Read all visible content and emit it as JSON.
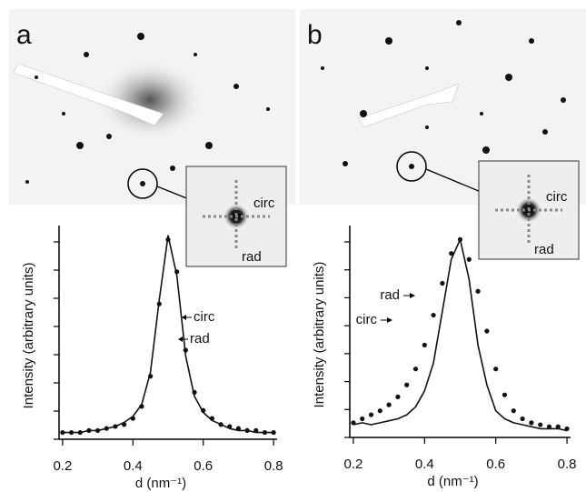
{
  "chart_data": [
    {
      "type": "line",
      "panel": "a",
      "xlabel": "d (nm⁻¹)",
      "ylabel": "Intensity (arbitrary units)",
      "x": [
        0.2,
        0.225,
        0.25,
        0.275,
        0.3,
        0.325,
        0.35,
        0.375,
        0.4,
        0.425,
        0.45,
        0.475,
        0.5,
        0.525,
        0.55,
        0.575,
        0.6,
        0.625,
        0.65,
        0.675,
        0.7,
        0.725,
        0.75,
        0.775,
        0.8
      ],
      "xlim": [
        0.19,
        0.81
      ],
      "xticks": [
        0.2,
        0.4,
        0.6,
        0.8
      ],
      "ylim": [
        0,
        1.05
      ],
      "series": [
        {
          "name": "circ",
          "color": "#111111",
          "mode": "markers",
          "values": [
            0.02,
            0.02,
            0.02,
            0.03,
            0.03,
            0.04,
            0.05,
            0.06,
            0.09,
            0.15,
            0.3,
            0.66,
            0.98,
            0.82,
            0.43,
            0.22,
            0.13,
            0.09,
            0.06,
            0.05,
            0.04,
            0.03,
            0.03,
            0.02,
            0.02
          ]
        },
        {
          "name": "rad",
          "color": "#111111",
          "mode": "lines",
          "values": [
            0.02,
            0.02,
            0.02,
            0.03,
            0.03,
            0.04,
            0.05,
            0.07,
            0.1,
            0.16,
            0.32,
            0.68,
            1.0,
            0.8,
            0.4,
            0.2,
            0.12,
            0.08,
            0.06,
            0.04,
            0.03,
            0.03,
            0.02,
            0.02,
            0.02
          ]
        }
      ]
    },
    {
      "type": "line",
      "panel": "b",
      "xlabel": "d (nm⁻¹)",
      "ylabel": "Intensity (arbitrary units)",
      "x": [
        0.2,
        0.225,
        0.25,
        0.275,
        0.3,
        0.325,
        0.35,
        0.375,
        0.4,
        0.425,
        0.45,
        0.475,
        0.5,
        0.525,
        0.55,
        0.575,
        0.6,
        0.625,
        0.65,
        0.675,
        0.7,
        0.725,
        0.75,
        0.775,
        0.8
      ],
      "xlim": [
        0.19,
        0.81
      ],
      "xticks": [
        0.2,
        0.4,
        0.6,
        0.8
      ],
      "ylim": [
        0,
        1.05
      ],
      "series": [
        {
          "name": "circ",
          "color": "#111111",
          "mode": "markers",
          "values": [
            0.06,
            0.08,
            0.1,
            0.12,
            0.15,
            0.19,
            0.25,
            0.33,
            0.45,
            0.6,
            0.76,
            0.91,
            0.98,
            0.88,
            0.72,
            0.52,
            0.33,
            0.2,
            0.12,
            0.08,
            0.06,
            0.05,
            0.04,
            0.04,
            0.03
          ]
        },
        {
          "name": "rad",
          "color": "#111111",
          "mode": "lines",
          "values": [
            0.05,
            0.06,
            0.05,
            0.06,
            0.07,
            0.08,
            0.1,
            0.14,
            0.22,
            0.36,
            0.62,
            0.88,
            0.98,
            0.78,
            0.45,
            0.25,
            0.12,
            0.08,
            0.06,
            0.05,
            0.04,
            0.03,
            0.03,
            0.03,
            0.02
          ]
        }
      ]
    }
  ]
}
